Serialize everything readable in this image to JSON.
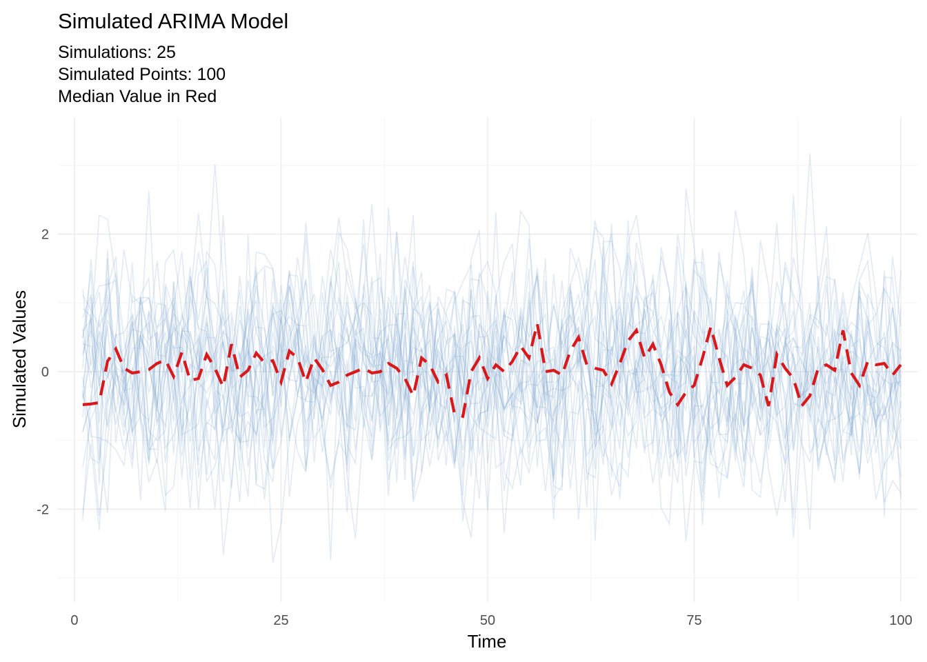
{
  "chart_data": {
    "type": "line",
    "title": "Simulated ARIMA Model",
    "subtitle_lines": [
      "Simulations: 25",
      "Simulated Points: 100",
      "Median Value in Red"
    ],
    "xlabel": "Time",
    "ylabel": "Simulated Values",
    "xlim": [
      -2,
      102
    ],
    "ylim": [
      -3.35,
      3.7
    ],
    "x_ticks": [
      0,
      25,
      50,
      75,
      100
    ],
    "x_tick_labels": [
      "0",
      "25",
      "50",
      "75",
      "100"
    ],
    "y_ticks": [
      -2,
      0,
      2
    ],
    "y_tick_labels": [
      "-2",
      "0",
      "2"
    ],
    "grid": true,
    "simulations": 25,
    "points_per_simulation": 100,
    "simulation_color": "#7aa6cf",
    "median_color": "#d7191c",
    "median_series": {
      "name": "Median",
      "x": [
        1,
        2,
        3,
        4,
        5,
        6,
        7,
        8,
        9,
        10,
        11,
        12,
        13,
        14,
        15,
        16,
        17,
        18,
        19,
        20,
        21,
        22,
        23,
        24,
        25,
        26,
        27,
        28,
        29,
        30,
        31,
        32,
        33,
        34,
        35,
        36,
        37,
        38,
        39,
        40,
        41,
        42,
        43,
        44,
        45,
        46,
        47,
        48,
        49,
        50,
        51,
        52,
        53,
        54,
        55,
        56,
        57,
        58,
        59,
        60,
        61,
        62,
        63,
        64,
        65,
        66,
        67,
        68,
        69,
        70,
        71,
        72,
        73,
        74,
        75,
        76,
        77,
        78,
        79,
        80,
        81,
        82,
        83,
        84,
        85,
        86,
        87,
        88,
        89,
        90,
        91,
        92,
        93,
        94,
        95,
        96,
        97,
        98,
        99,
        100
      ],
      "y": [
        -0.48,
        -0.47,
        -0.45,
        0.15,
        0.33,
        0.05,
        -0.02,
        0.0,
        0.03,
        0.12,
        0.17,
        -0.07,
        0.28,
        -0.13,
        -0.1,
        0.25,
        0.05,
        -0.22,
        0.4,
        -0.08,
        0.02,
        0.27,
        0.13,
        0.16,
        -0.15,
        0.3,
        0.2,
        -0.15,
        0.2,
        0.03,
        -0.2,
        -0.15,
        -0.05,
        0.0,
        0.05,
        -0.02,
        0.0,
        0.12,
        0.05,
        -0.1,
        -0.35,
        0.2,
        0.1,
        -0.15,
        -0.05,
        -0.62,
        -0.65,
        0.0,
        0.2,
        -0.1,
        0.1,
        0.0,
        0.15,
        0.37,
        0.2,
        0.7,
        0.0,
        0.02,
        -0.05,
        0.3,
        0.5,
        0.1,
        0.05,
        0.02,
        -0.18,
        0.12,
        0.45,
        0.6,
        0.2,
        0.4,
        0.1,
        -0.3,
        -0.48,
        -0.3,
        -0.2,
        0.2,
        0.65,
        0.2,
        -0.2,
        -0.08,
        0.1,
        0.05,
        -0.05,
        -0.5,
        0.25,
        0.05,
        -0.1,
        -0.5,
        -0.35,
        0.05,
        0.1,
        0.02,
        0.6,
        -0.02,
        -0.2,
        0.15,
        0.1,
        0.12,
        -0.05,
        0.1
      ]
    }
  }
}
